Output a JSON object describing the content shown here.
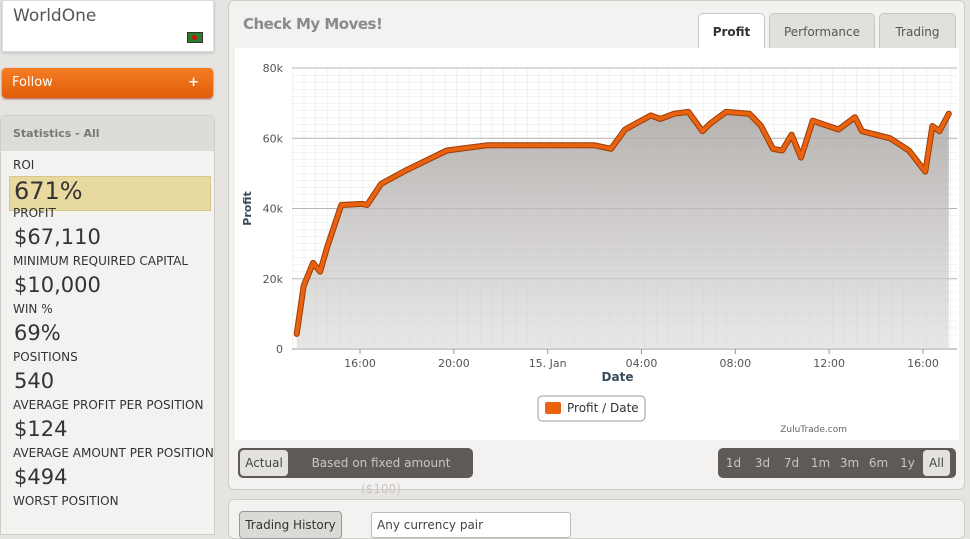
{
  "profile": {
    "name": "WorldOne",
    "follow": "Follow",
    "follow_icon": "+"
  },
  "statistics": {
    "title": "Statistics - All",
    "items": [
      {
        "label": "ROI",
        "value": "671%"
      },
      {
        "label": "PROFIT",
        "value": "$67,110"
      },
      {
        "label": "MINIMUM REQUIRED CAPITAL",
        "value": "$10,000"
      },
      {
        "label": "WIN %",
        "value": "69%"
      },
      {
        "label": "POSITIONS",
        "value": "540"
      },
      {
        "label": "AVERAGE PROFIT PER POSITION",
        "value": "$124"
      },
      {
        "label": "AVERAGE AMOUNT PER POSITION",
        "value": "$494"
      },
      {
        "label": "WORST POSITION"
      }
    ]
  },
  "panel": {
    "title": "Check My Moves!",
    "tabs": [
      "Profit",
      "Performance",
      "Trading"
    ]
  },
  "chart_data": {
    "type": "line",
    "x_label": "Date",
    "y_label": "Profit",
    "credit": "ZuluTrade.com",
    "grid": true,
    "x": [
      13.3,
      13.6,
      14.0,
      14.3,
      14.6,
      15.2,
      16.1,
      16.3,
      16.9,
      18.0,
      19.7,
      21.4,
      23.9,
      26.0,
      26.7,
      27.3,
      28.4,
      28.8,
      29.4,
      30.0,
      30.6,
      30.9,
      31.6,
      32.6,
      33.1,
      33.6,
      34.0,
      34.4,
      34.8,
      35.3,
      36.4,
      37.1,
      37.4,
      38.6,
      39.4,
      40.1,
      40.4,
      40.7,
      41.1
    ],
    "series": [
      {
        "name": "Profit / Date",
        "color": "#e8620f",
        "values": [
          4300,
          18000,
          24500,
          22000,
          29000,
          41000,
          41300,
          41000,
          47000,
          51000,
          56500,
          58000,
          58000,
          58000,
          57000,
          62500,
          66500,
          65500,
          67000,
          67500,
          62000,
          64000,
          67500,
          67000,
          63500,
          57000,
          56500,
          61000,
          54500,
          65000,
          62500,
          66000,
          62000,
          60000,
          56500,
          50500,
          63500,
          62000,
          67000
        ]
      }
    ],
    "xlim": [
      13.1,
      41.45
    ],
    "xticks": [
      {
        "value": 16,
        "label": "16:00"
      },
      {
        "value": 20,
        "label": "20:00"
      },
      {
        "value": 24,
        "label": "15. Jan"
      },
      {
        "value": 28,
        "label": "04:00"
      },
      {
        "value": 32,
        "label": "08:00"
      },
      {
        "value": 36,
        "label": "12:00"
      },
      {
        "value": 40,
        "label": "16:00"
      }
    ],
    "ylim": [
      0,
      80000
    ],
    "yticks": [
      0,
      {
        "value": 20000,
        "label": "20k"
      },
      {
        "value": 40000,
        "label": "40k"
      },
      {
        "value": 60000,
        "label": "60k"
      },
      {
        "value": 80000,
        "label": "80k"
      }
    ]
  },
  "mode_toggle": [
    "Actual",
    "Based on fixed amount ($100)"
  ],
  "ranges": [
    "1d",
    "3d",
    "7d",
    "1m",
    "3m",
    "6m",
    "1y",
    "All"
  ],
  "history": {
    "button": "Trading History",
    "filter": "Any currency pair"
  }
}
